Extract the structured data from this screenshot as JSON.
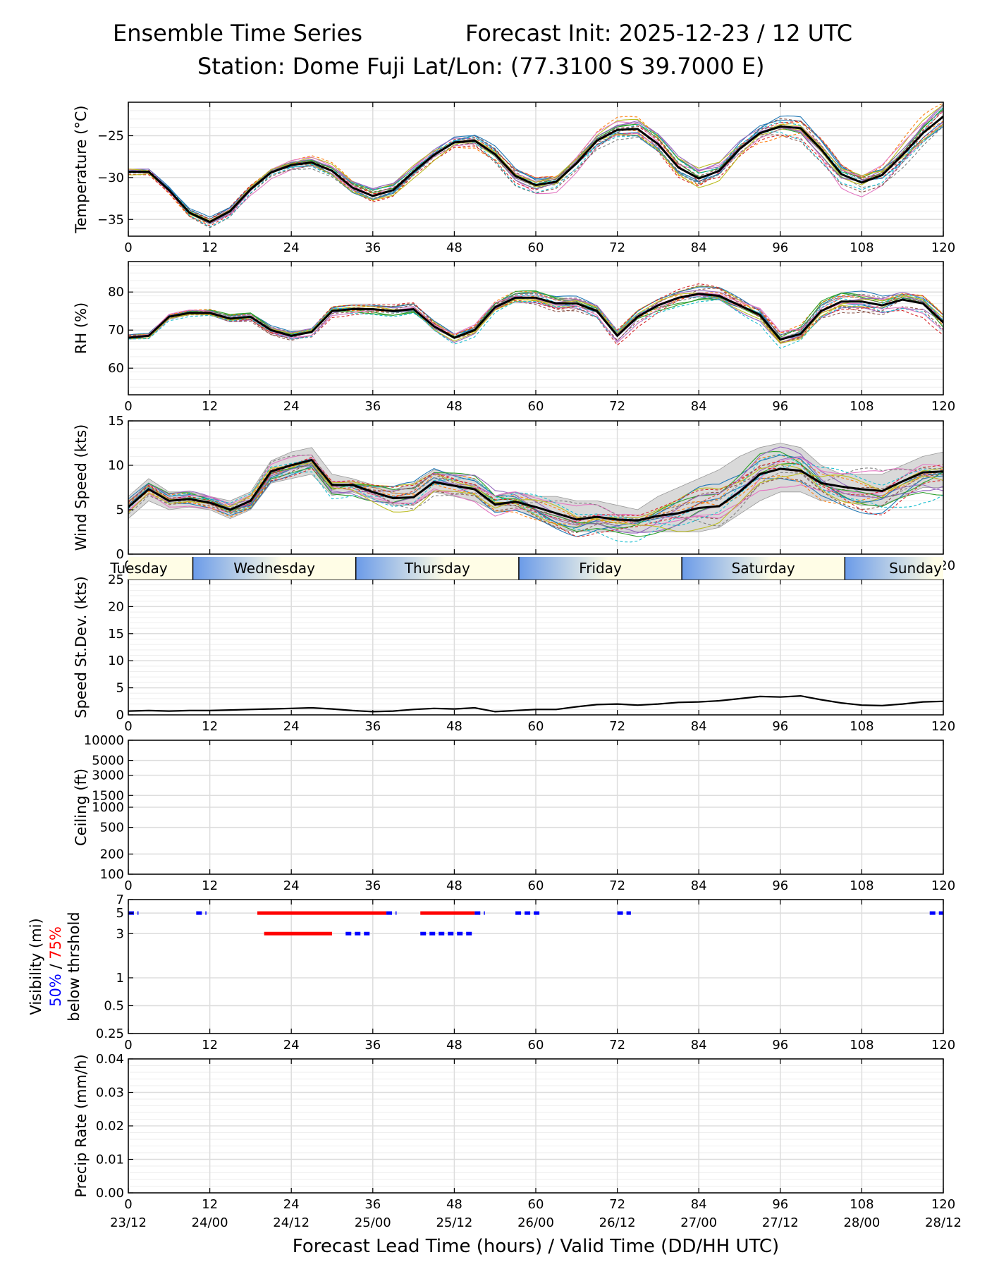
{
  "header": {
    "title": "Ensemble Time Series",
    "forecast_init": "Forecast Init: 2025-12-23 / 12 UTC",
    "station": "Station: Dome Fuji",
    "latlon": "Lat/Lon: (77.3100 S 39.7000 E)"
  },
  "colors": {
    "mean_line": "#000000",
    "spread_fill": "#d9d9d9",
    "vis_50": "#0000ff",
    "vis_75": "#ff0000",
    "members": [
      "#1f77b4",
      "#ff7f0e",
      "#2ca02c",
      "#d62728",
      "#9467bd",
      "#8c564b",
      "#e377c2",
      "#7f7f7f",
      "#bcbd22",
      "#17becf"
    ]
  },
  "xaxis": {
    "lead_ticks": [
      0,
      12,
      24,
      36,
      48,
      60,
      72,
      84,
      96,
      108,
      120
    ],
    "lead_tick_labels": [
      "0",
      "12",
      "24",
      "36",
      "48",
      "60",
      "72",
      "84",
      "96",
      "108",
      "120"
    ],
    "valid_labels": [
      "23/12",
      "24/00",
      "24/12",
      "25/00",
      "25/12",
      "26/00",
      "26/12",
      "27/00",
      "27/12",
      "28/00",
      "28/12"
    ],
    "xlabel": "Forecast Lead Time (hours) / Valid Time (DD/HH UTC)",
    "xlim": [
      0,
      120
    ]
  },
  "day_strip": {
    "days": [
      {
        "name": "Tuesday",
        "start": -12,
        "end": 9.5
      },
      {
        "name": "Wednesday",
        "start": 9.5,
        "end": 33.5
      },
      {
        "name": "Thursday",
        "start": 33.5,
        "end": 57.5
      },
      {
        "name": "Friday",
        "start": 57.5,
        "end": 81.5
      },
      {
        "name": "Saturday",
        "start": 81.5,
        "end": 105.5
      },
      {
        "name": "Sunday",
        "start": 105.5,
        "end": 129.5
      }
    ]
  },
  "chart_data": [
    {
      "id": "temperature",
      "type": "line",
      "ylabel": "Temperature (°C)",
      "ylim": [
        -37,
        -21
      ],
      "yticks": [
        -35,
        -30,
        -25
      ],
      "ytick_labels": [
        "−35",
        "−30",
        "−25"
      ],
      "yscale": "linear",
      "members": 20,
      "member_spread": 0.9,
      "mean": {
        "x": [
          0,
          3,
          6,
          9,
          12,
          15,
          18,
          21,
          24,
          27,
          30,
          33,
          36,
          39,
          42,
          45,
          48,
          51,
          54,
          57,
          60,
          63,
          66,
          69,
          72,
          75,
          78,
          81,
          84,
          87,
          90,
          93,
          96,
          99,
          102,
          105,
          108,
          111,
          114,
          117,
          120
        ],
        "y": [
          -29.3,
          -29.3,
          -31.5,
          -34.2,
          -35.3,
          -34.0,
          -31.4,
          -29.4,
          -28.5,
          -28.2,
          -29.2,
          -31.2,
          -32.2,
          -31.5,
          -29.3,
          -27.3,
          -25.8,
          -25.6,
          -27.2,
          -29.8,
          -30.9,
          -30.5,
          -28.3,
          -25.6,
          -24.3,
          -24.2,
          -26.0,
          -28.8,
          -30.1,
          -29.2,
          -26.6,
          -24.7,
          -23.9,
          -24.1,
          -26.6,
          -29.6,
          -30.6,
          -29.7,
          -27.3,
          -24.7,
          -22.7
        ]
      }
    },
    {
      "id": "rh",
      "type": "line",
      "ylabel": "RH (%)",
      "ylim": [
        53,
        88
      ],
      "yticks": [
        60,
        70,
        80
      ],
      "ytick_labels": [
        "60",
        "70",
        "80"
      ],
      "yscale": "linear",
      "members": 20,
      "member_spread": 1.5,
      "mean": {
        "x": [
          0,
          3,
          6,
          9,
          12,
          15,
          18,
          21,
          24,
          27,
          30,
          33,
          36,
          39,
          42,
          45,
          48,
          51,
          54,
          57,
          60,
          63,
          66,
          69,
          72,
          75,
          78,
          81,
          84,
          87,
          90,
          93,
          96,
          99,
          102,
          105,
          108,
          111,
          114,
          117,
          120
        ],
        "y": [
          68,
          68.5,
          73.5,
          74.5,
          74.5,
          73,
          73.5,
          70,
          68.5,
          69.5,
          75,
          75.5,
          75.5,
          75,
          75.5,
          71,
          68,
          70,
          76,
          78.5,
          78.5,
          77,
          77,
          75,
          68.5,
          73.5,
          76.5,
          78.5,
          79.5,
          79,
          76.5,
          74,
          67.5,
          69,
          75,
          77.5,
          77.5,
          76.5,
          78,
          77,
          72
        ]
      }
    },
    {
      "id": "wind_speed",
      "type": "line",
      "ylabel": "Wind Speed (kts)",
      "ylim": [
        0,
        15
      ],
      "yticks": [
        0,
        5,
        10,
        15
      ],
      "ytick_labels": [
        "0",
        "5",
        "10",
        "15"
      ],
      "yscale": "linear",
      "members": 20,
      "member_spread": 1.3,
      "mean": {
        "x": [
          0,
          3,
          6,
          9,
          12,
          15,
          18,
          21,
          24,
          27,
          30,
          33,
          36,
          39,
          42,
          45,
          48,
          51,
          54,
          57,
          60,
          63,
          66,
          69,
          72,
          75,
          78,
          81,
          84,
          87,
          90,
          93,
          96,
          99,
          102,
          105,
          108,
          111,
          114,
          117,
          120
        ],
        "y": [
          5.3,
          7.3,
          6.0,
          6.2,
          5.8,
          5.0,
          6.0,
          9.3,
          10.0,
          10.6,
          7.8,
          7.8,
          7.0,
          6.3,
          6.4,
          8.1,
          7.7,
          7.3,
          5.6,
          5.9,
          5.3,
          4.6,
          3.9,
          4.2,
          3.9,
          3.8,
          4.3,
          4.6,
          5.2,
          5.4,
          7.0,
          9.0,
          9.6,
          9.4,
          8.0,
          7.6,
          7.3,
          7.1,
          8.2,
          9.2,
          9.3
        ]
      },
      "spread": {
        "upper": [
          6.5,
          8.5,
          7.0,
          7.0,
          6.5,
          6.0,
          7.0,
          10.5,
          11.5,
          12.0,
          9.0,
          8.5,
          7.8,
          7.2,
          8.0,
          9.5,
          9.0,
          8.5,
          6.5,
          7.0,
          6.5,
          6.5,
          6.0,
          6.0,
          5.5,
          5.0,
          6.5,
          7.5,
          8.5,
          9.5,
          11.0,
          12.0,
          12.5,
          12.0,
          10.0,
          9.0,
          9.0,
          9.0,
          10.0,
          11.0,
          11.5
        ],
        "lower": [
          4.0,
          6.0,
          5.0,
          5.3,
          5.0,
          4.0,
          5.0,
          8.0,
          8.5,
          9.0,
          6.6,
          7.0,
          6.2,
          5.5,
          5.5,
          7.0,
          6.5,
          6.0,
          4.8,
          5.0,
          4.0,
          3.0,
          2.5,
          2.5,
          2.5,
          2.5,
          2.5,
          2.5,
          2.5,
          3.0,
          4.5,
          6.0,
          7.0,
          7.0,
          6.0,
          6.0,
          5.5,
          5.5,
          6.5,
          7.5,
          7.5
        ]
      }
    },
    {
      "id": "speed_stdev",
      "type": "line",
      "ylabel": "Speed St.Dev. (kts)",
      "ylim": [
        0,
        25
      ],
      "yticks": [
        0,
        5,
        10,
        15,
        20,
        25
      ],
      "ytick_labels": [
        "0",
        "5",
        "10",
        "15",
        "20",
        "25"
      ],
      "yscale": "linear",
      "members": 0,
      "mean": {
        "x": [
          0,
          3,
          6,
          9,
          12,
          15,
          18,
          21,
          24,
          27,
          30,
          33,
          36,
          39,
          42,
          45,
          48,
          51,
          54,
          57,
          60,
          63,
          66,
          69,
          72,
          75,
          78,
          81,
          84,
          87,
          90,
          93,
          96,
          99,
          102,
          105,
          108,
          111,
          114,
          117,
          120
        ],
        "y": [
          0.7,
          0.8,
          0.7,
          0.8,
          0.8,
          0.9,
          1.0,
          1.1,
          1.2,
          1.3,
          1.1,
          0.8,
          0.6,
          0.7,
          1.0,
          1.2,
          1.1,
          1.3,
          0.6,
          0.8,
          1.0,
          1.0,
          1.5,
          1.9,
          2.0,
          1.8,
          2.0,
          2.3,
          2.4,
          2.6,
          3.0,
          3.4,
          3.3,
          3.5,
          2.8,
          2.2,
          1.8,
          1.7,
          2.0,
          2.4,
          2.5
        ]
      }
    },
    {
      "id": "ceiling",
      "type": "line",
      "ylabel": "Ceiling (ft)",
      "ylim": [
        100,
        10000
      ],
      "yscale": "log",
      "yticks": [
        100,
        200,
        500,
        1000,
        1500,
        3000,
        5000,
        10000
      ],
      "ytick_labels": [
        "100",
        "200",
        "500",
        "1000",
        "1500",
        "3000",
        "5000",
        "10000"
      ],
      "members": 0,
      "mean": {
        "x": [],
        "y": []
      }
    },
    {
      "id": "visibility",
      "type": "line",
      "ylabel": "Visibility (mi)",
      "ylabel_50": "50%",
      "ylabel_sep": " / ",
      "ylabel_75": "75%",
      "ylabel_tail": "below thrshold",
      "ylim": [
        0.25,
        7
      ],
      "yscale": "log",
      "yticks": [
        0.25,
        0.5,
        1,
        3,
        5,
        7
      ],
      "ytick_labels": [
        "0.25",
        "0.5",
        "1",
        "3",
        "5",
        "7"
      ],
      "members": 0,
      "mean": {
        "x": [],
        "y": []
      },
      "threshold_segments": [
        {
          "color": "blue",
          "y": 5,
          "start": 0,
          "end": 1.5
        },
        {
          "color": "blue",
          "y": 5,
          "start": 10,
          "end": 11.5
        },
        {
          "color": "red",
          "y": 5,
          "start": 19,
          "end": 38
        },
        {
          "color": "blue",
          "y": 5,
          "start": 38,
          "end": 39.5
        },
        {
          "color": "red",
          "y": 5,
          "start": 43,
          "end": 51
        },
        {
          "color": "blue",
          "y": 5,
          "start": 51,
          "end": 52.5
        },
        {
          "color": "blue",
          "y": 5,
          "start": 57,
          "end": 61
        },
        {
          "color": "blue",
          "y": 5,
          "start": 72,
          "end": 74
        },
        {
          "color": "blue",
          "y": 5,
          "start": 118,
          "end": 120
        },
        {
          "color": "red",
          "y": 3,
          "start": 20,
          "end": 30
        },
        {
          "color": "blue",
          "y": 3,
          "start": 32,
          "end": 36
        },
        {
          "color": "blue",
          "y": 3,
          "start": 43,
          "end": 51
        }
      ]
    },
    {
      "id": "precip",
      "type": "line",
      "ylabel": "Precip Rate (mm/h)",
      "ylim": [
        0,
        0.04
      ],
      "yticks": [
        0,
        0.01,
        0.02,
        0.03,
        0.04
      ],
      "ytick_labels": [
        "0.00",
        "0.01",
        "0.02",
        "0.03",
        "0.04"
      ],
      "yscale": "linear",
      "members": 0,
      "mean": {
        "x": [],
        "y": []
      }
    }
  ]
}
